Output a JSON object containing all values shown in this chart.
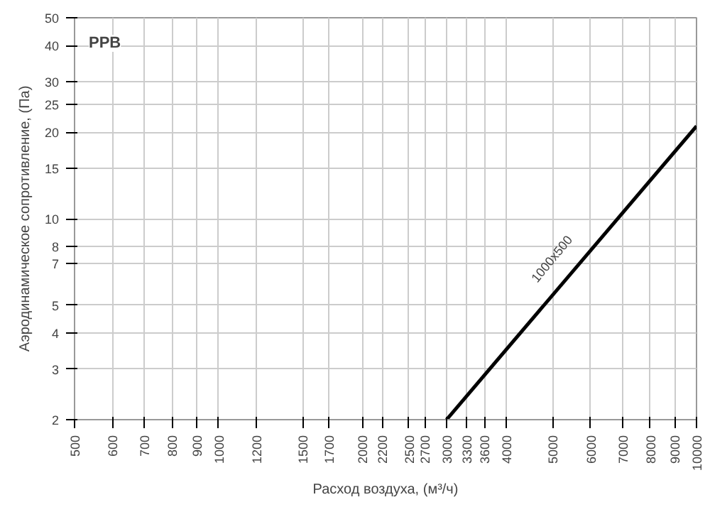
{
  "chart_data": {
    "type": "line",
    "title": "PPB",
    "xlabel": "Расход воздуха, (м³/ч)",
    "ylabel": "Аэродинамическое сопротивление, (Па)",
    "log": "xy",
    "grid": true,
    "marker": "none",
    "line_style": "solid",
    "xlim": [
      500,
      10000
    ],
    "ylim": [
      2,
      50
    ],
    "xticks": [
      500,
      600,
      700,
      800,
      900,
      1000,
      1200,
      1500,
      1700,
      2000,
      2200,
      2500,
      2700,
      3000,
      3300,
      3600,
      4000,
      5000,
      6000,
      7000,
      8000,
      9000,
      10000
    ],
    "yticks": [
      2,
      3,
      4,
      5,
      7,
      8,
      10,
      15,
      20,
      25,
      30,
      40,
      50
    ],
    "series": [
      {
        "color": "#000000",
        "x": [
          3000,
          10000
        ],
        "values": [
          2,
          21
        ]
      }
    ],
    "annotations": [
      "1000x500"
    ]
  }
}
